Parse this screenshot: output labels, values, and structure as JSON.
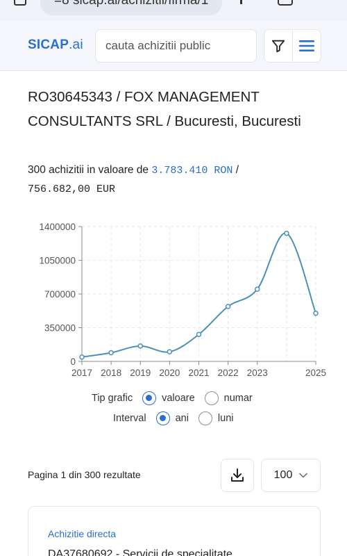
{
  "browser": {
    "url": "=8 sicap.ai/achizitii/firma/1"
  },
  "header": {
    "logo_main": "SICAP",
    "logo_suffix": ".ai",
    "search_placeholder": "cauta achizitii public"
  },
  "company": {
    "title": "RO30645343 / FOX MANAGEMENT CONSULTANTS SRL / Bucuresti, Bucuresti",
    "summary_prefix": "300 achizitii in valoare de",
    "value_ron": "3.783.410 RON",
    "separator": "/",
    "value_eur": "756.682,00 EUR"
  },
  "chart_data": {
    "type": "line",
    "x": [
      2017,
      2018,
      2019,
      2020,
      2021,
      2022,
      2023,
      2024,
      2025
    ],
    "values": [
      45000,
      90000,
      160000,
      100000,
      280000,
      570000,
      750000,
      1330000,
      500000
    ],
    "x_tick_labels": [
      "2017",
      "2018",
      "2019",
      "2020",
      "2021",
      "2022",
      "2023",
      "2025"
    ],
    "y_tick_labels": [
      "0",
      "350000",
      "700000",
      "1050000",
      "1400000"
    ],
    "y_ticks": [
      0,
      350000,
      700000,
      1050000,
      1400000
    ],
    "ylim": [
      0,
      1400000
    ],
    "xlim": [
      2017,
      2025
    ],
    "grid": true,
    "line_color": "#4a90b8"
  },
  "controls": {
    "chart_type_label": "Tip grafic",
    "chart_type_options": [
      "valoare",
      "numar"
    ],
    "chart_type_selected": "valoare",
    "interval_label": "Interval",
    "interval_options": [
      "ani",
      "luni"
    ],
    "interval_selected": "ani"
  },
  "pagination": {
    "info": "Pagina 1 din 300 rezultate",
    "page_size": "100"
  },
  "results": [
    {
      "type": "Achizitie directa",
      "title": "DA37680692 - Servicii de specialitate"
    }
  ],
  "colors": {
    "accent": "#2a6fc9",
    "header_bg": "#f4f6fb"
  }
}
